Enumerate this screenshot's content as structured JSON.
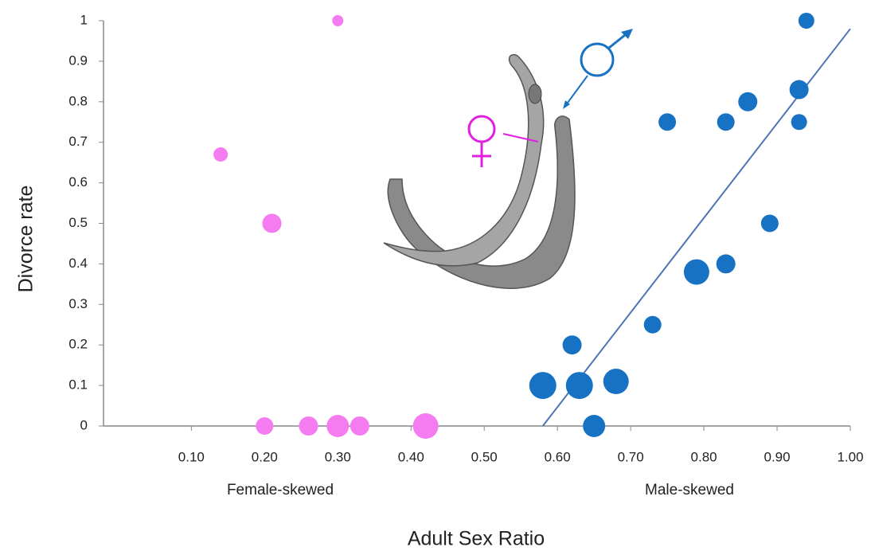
{
  "chart_data": {
    "type": "scatter",
    "xlabel": "Adult Sex Ratio",
    "ylabel": "Divorce rate",
    "annotations": [
      "Female-skewed",
      "Male-skewed"
    ],
    "xlim": [
      -0.02,
      1.0
    ],
    "ylim": [
      0,
      1
    ],
    "xticks": [
      {
        "value": 0.1,
        "label": "0.10"
      },
      {
        "value": 0.2,
        "label": "0.20"
      },
      {
        "value": 0.3,
        "label": "0.30"
      },
      {
        "value": 0.4,
        "label": "0.40"
      },
      {
        "value": 0.5,
        "label": "0.50"
      },
      {
        "value": 0.6,
        "label": "0.60"
      },
      {
        "value": 0.7,
        "label": "0.70"
      },
      {
        "value": 0.8,
        "label": "0.80"
      },
      {
        "value": 0.9,
        "label": "0.90"
      },
      {
        "value": 1.0,
        "label": "1.00"
      }
    ],
    "yticks": [
      0,
      0.1,
      0.2,
      0.3,
      0.4,
      0.5,
      0.6,
      0.7,
      0.8,
      0.9,
      1
    ],
    "series": [
      {
        "color": "#f57cf0",
        "x": [
          0.14,
          0.21,
          0.3,
          0.2,
          0.26,
          0.3,
          0.33,
          0.42
        ],
        "values": [
          0.67,
          0.5,
          1.0,
          0,
          0,
          0,
          0,
          0
        ],
        "sizes": [
          9,
          12,
          7,
          11,
          12,
          14,
          12,
          16
        ]
      },
      {
        "color": "#1872c4",
        "x": [
          0.58,
          0.63,
          0.68,
          0.62,
          0.65,
          0.73,
          0.79,
          0.83,
          0.75,
          0.83,
          0.86,
          0.89,
          0.93,
          0.93,
          0.94
        ],
        "values": [
          0.1,
          0.1,
          0.11,
          0.2,
          0,
          0.25,
          0.38,
          0.4,
          0.75,
          0.75,
          0.8,
          0.5,
          0.83,
          0.75,
          1.0
        ],
        "sizes": [
          17,
          17,
          16,
          12,
          14,
          11,
          16,
          12,
          11,
          11,
          12,
          11,
          12,
          10,
          10
        ]
      }
    ],
    "trendline": {
      "color": "#4f74b8",
      "x": [
        0.58,
        1.0
      ],
      "y": [
        0,
        0.98
      ]
    }
  }
}
